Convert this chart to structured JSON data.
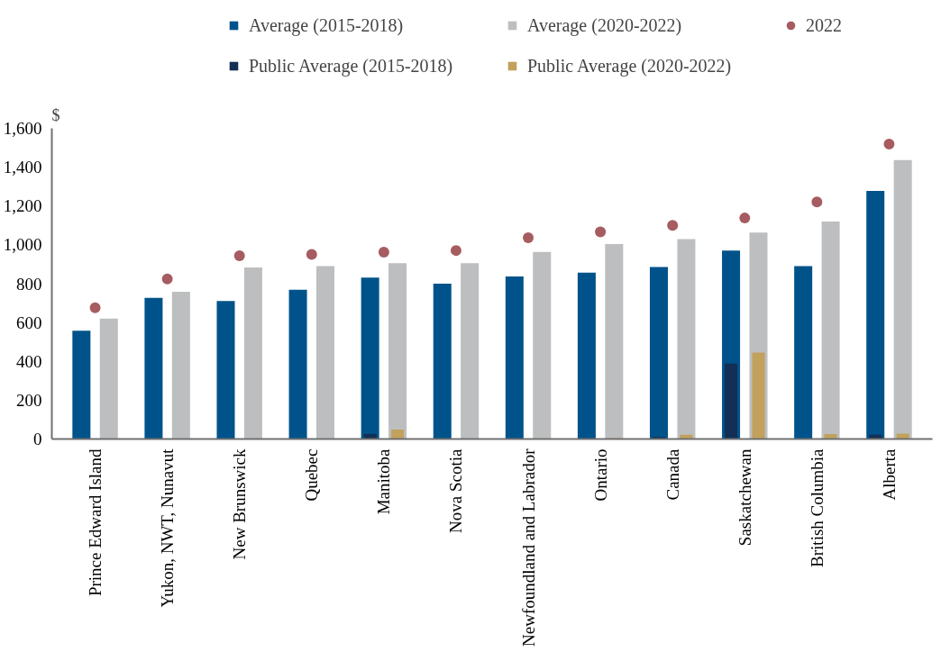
{
  "chart_data": {
    "type": "bar",
    "ylabel": "$",
    "categories": [
      "Prince Edward Island",
      "Yukon, NWT, Nunavut",
      "New Brunswick",
      "Quebec",
      "Manitoba",
      "Nova Scotia",
      "Newfoundland and Labrador",
      "Ontario",
      "Canada",
      "Saskatchewan",
      "British Columbia",
      "Alberta"
    ],
    "series": [
      {
        "name": "Average (2015-2018)",
        "color": "#00538a",
        "values": [
          558,
          727,
          711,
          769,
          831,
          800,
          837,
          857,
          886,
          971,
          890,
          1278
        ]
      },
      {
        "name": "Average (2020-2022)",
        "color": "#bdbec0",
        "values": [
          620,
          758,
          884,
          891,
          906,
          905,
          964,
          1004,
          1030,
          1063,
          1120,
          1436
        ]
      },
      {
        "name": "2022",
        "type": "scatter",
        "marker": "circle",
        "color": "#a65c60",
        "values": [
          676,
          824,
          944,
          951,
          962,
          971,
          1037,
          1067,
          1100,
          1138,
          1221,
          1519
        ]
      },
      {
        "name": "Public Average (2015-2018)",
        "color": "#142f55",
        "values": [
          0,
          0,
          0,
          0,
          27,
          0,
          0,
          0,
          11,
          388,
          0,
          22
        ]
      },
      {
        "name": "Public Average (2020-2022)",
        "color": "#c1a15c",
        "values": [
          0,
          0,
          0,
          0,
          49,
          0,
          0,
          5,
          22,
          445,
          26,
          28
        ]
      }
    ],
    "ylim": [
      0,
      1600
    ],
    "yticks": [
      0,
      200,
      400,
      600,
      800,
      {
        "value": 1000,
        "label": "1,000"
      },
      {
        "value": 1200,
        "label": "1,200"
      },
      {
        "value": 1400,
        "label": "1,400"
      },
      {
        "value": 1600,
        "label": "1,600"
      }
    ],
    "grid": false,
    "legend": "top"
  }
}
